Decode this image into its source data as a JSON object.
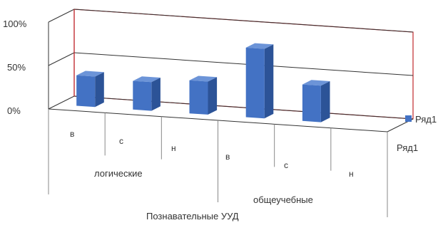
{
  "chart_data": {
    "type": "bar",
    "style": "3d-column",
    "title": "",
    "xlabel": "Познавательные УУД",
    "groups": [
      "логические",
      "общеучебные"
    ],
    "categories": [
      "в",
      "с",
      "н",
      "в",
      "с",
      "н"
    ],
    "series": [
      {
        "name": "Ряд1",
        "values": [
          35,
          33,
          38,
          80,
          42,
          0
        ]
      }
    ],
    "ylim": [
      0,
      100
    ],
    "yticks": [
      "0%",
      "50%",
      "100%"
    ],
    "grid": true,
    "legend": {
      "position": "right",
      "entry": "Ряд1"
    },
    "depth_axis_label": "Ряд1",
    "colors": {
      "bar_front": "#4372c4",
      "bar_side": "#2c5397",
      "bar_top": "#6c94d8",
      "frame": "#c0282d",
      "grid": "#333333"
    }
  }
}
